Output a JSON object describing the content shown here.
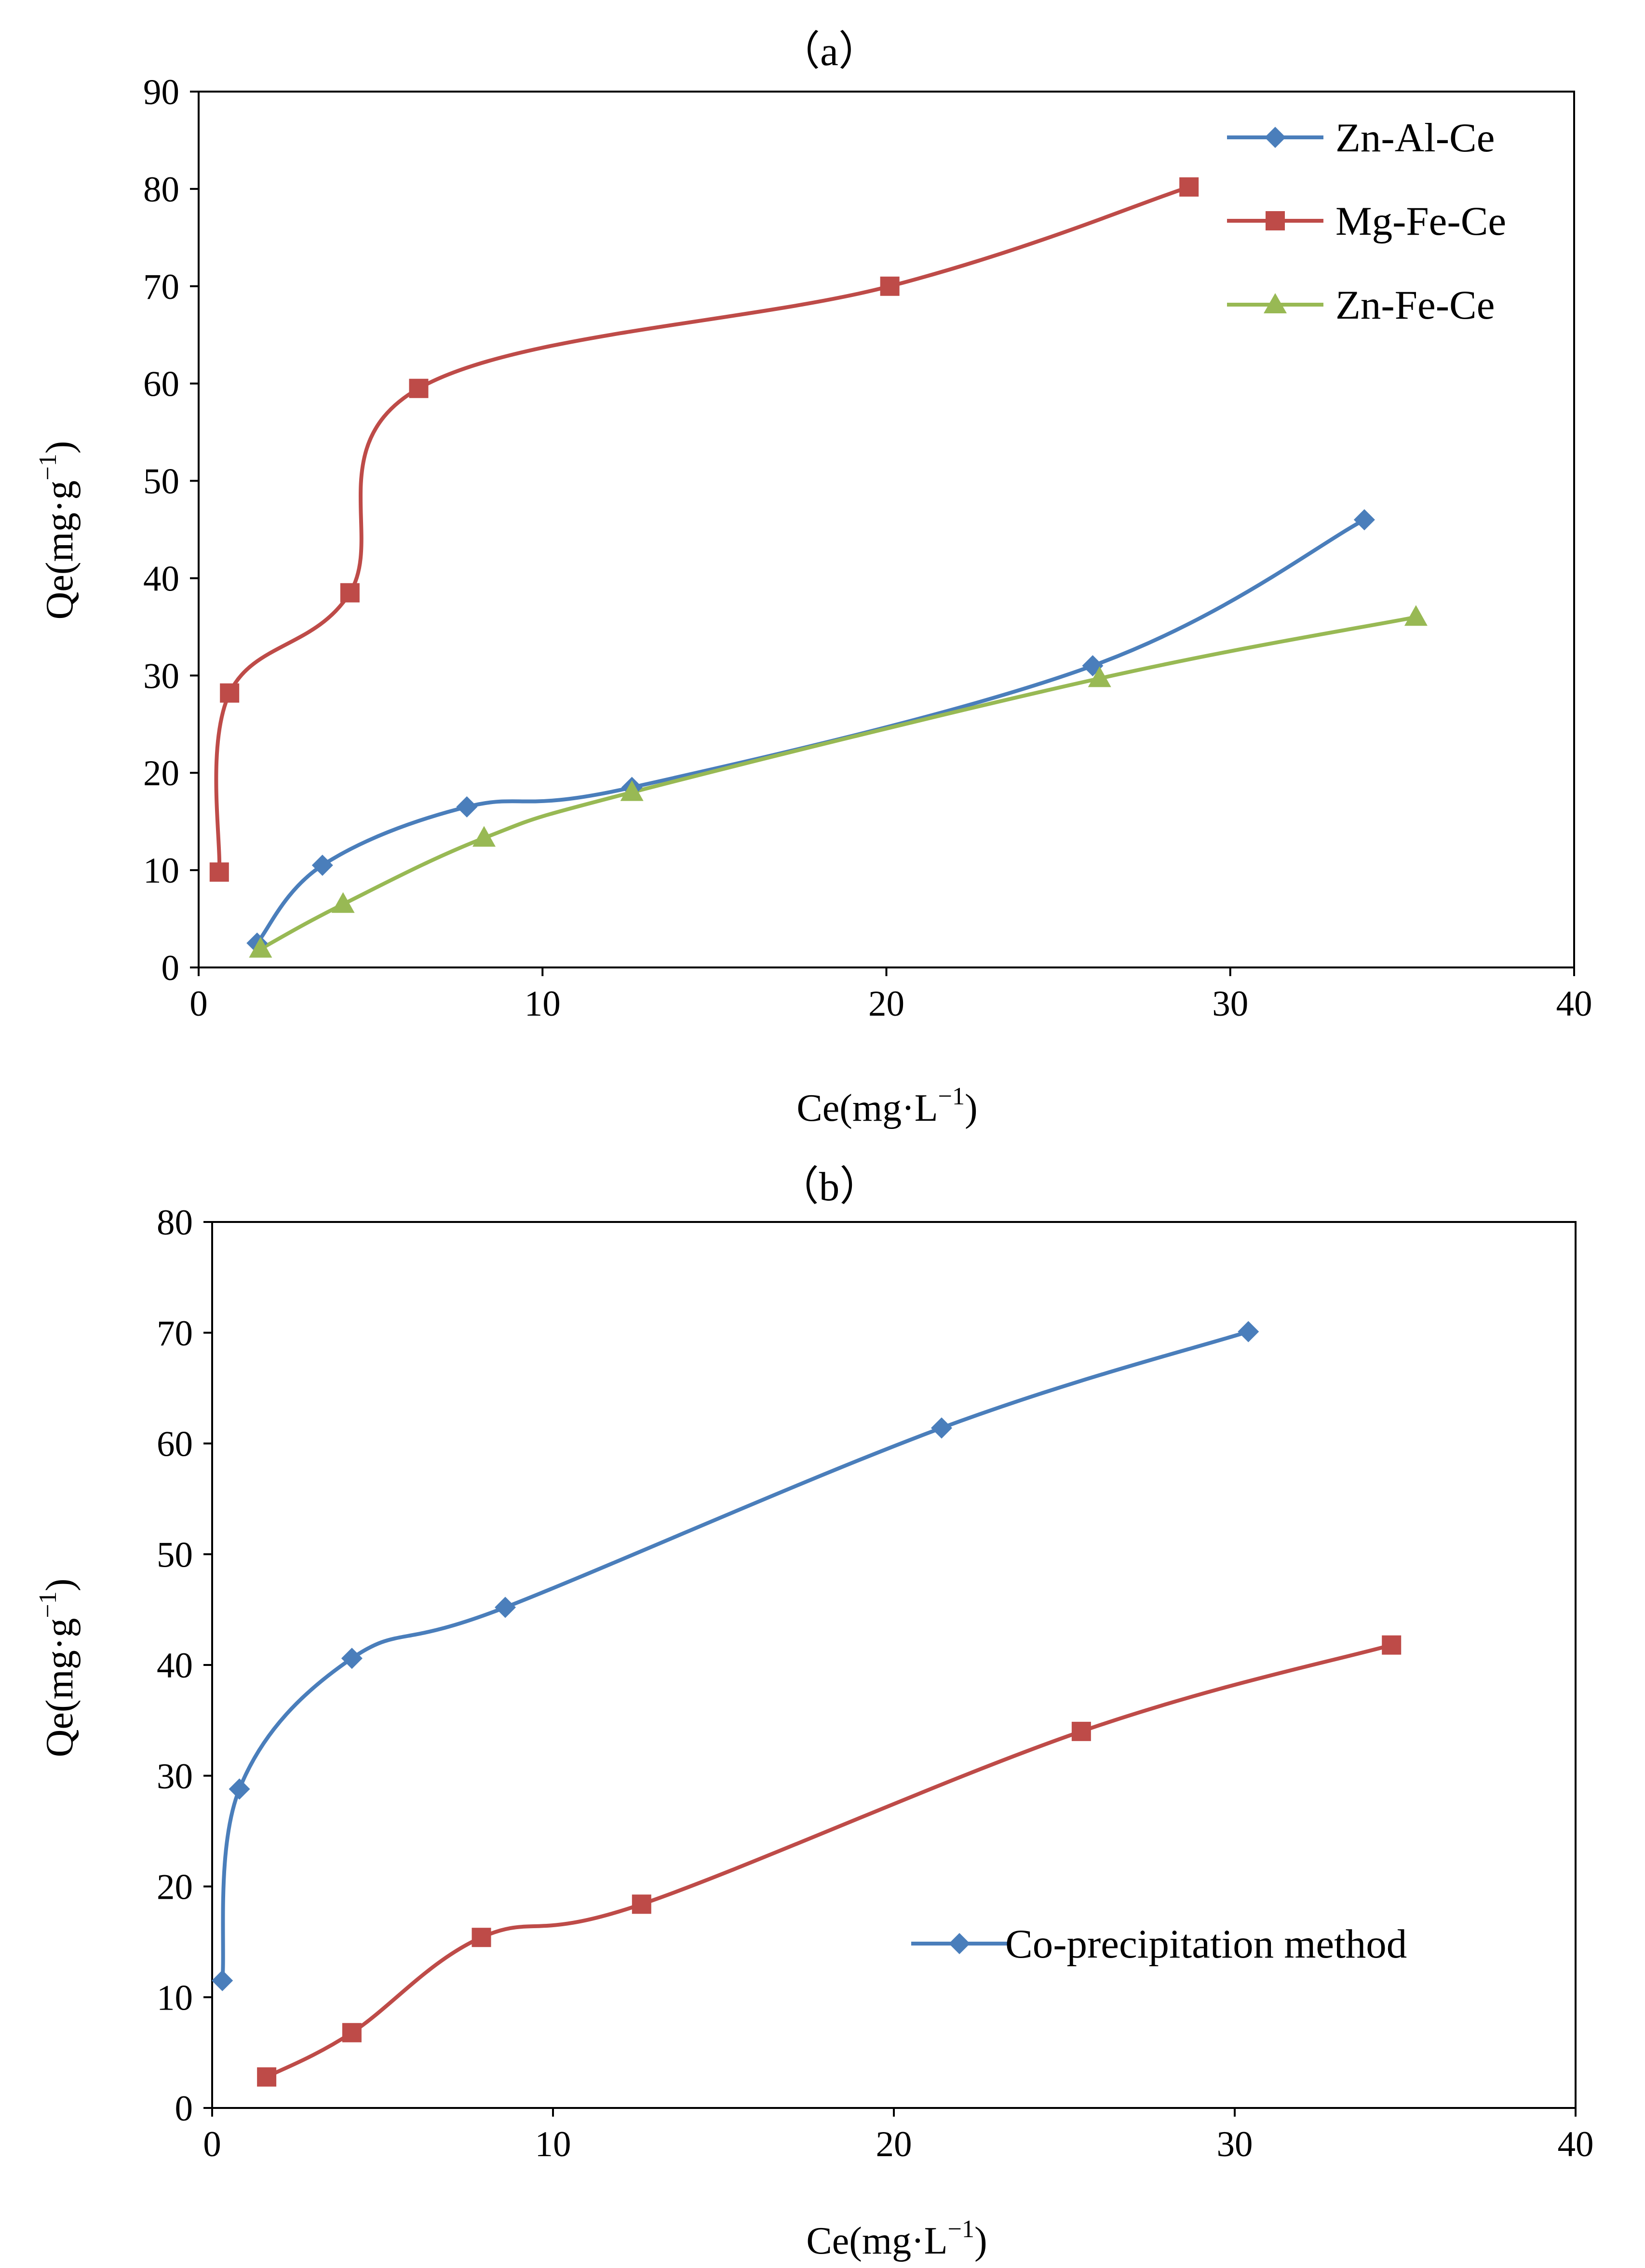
{
  "chart_data": [
    {
      "type": "line",
      "title": "（a）",
      "xlabel": "Ce(mg·L",
      "xlabel_sup": "−1",
      "xlabel_close": ")",
      "ylabel": "Qe(mg·g",
      "ylabel_sup": "−1",
      "ylabel_close": ")",
      "xlim": [
        0,
        40
      ],
      "ylim": [
        0,
        90
      ],
      "xticks": [
        "0",
        "10",
        "20",
        "30",
        "40"
      ],
      "yticks": [
        "0",
        "10",
        "20",
        "30",
        "40",
        "50",
        "60",
        "70",
        "80",
        "90"
      ],
      "grid": false,
      "legend_position": "top-right",
      "series": [
        {
          "name": "Zn-Al-Ce",
          "color": "#4a7ebb",
          "marker": "diamond",
          "x": [
            1.7,
            3.6,
            7.8,
            12.6,
            26.0,
            33.9
          ],
          "y": [
            2.5,
            10.5,
            16.5,
            18.5,
            31.0,
            46.0
          ]
        },
        {
          "name": "Mg-Fe-Ce",
          "color": "#be4b48",
          "marker": "square",
          "x": [
            0.6,
            0.9,
            4.4,
            6.4,
            20.1,
            28.8
          ],
          "y": [
            9.8,
            28.2,
            38.5,
            59.5,
            70.0,
            80.2
          ]
        },
        {
          "name": "Zn-Fe-Ce",
          "color": "#98b954",
          "marker": "triangle",
          "x": [
            1.8,
            4.2,
            8.3,
            12.6,
            26.2,
            35.4
          ],
          "y": [
            1.9,
            6.5,
            13.3,
            18.0,
            29.7,
            36.0
          ]
        }
      ]
    },
    {
      "type": "line",
      "title": "（b）",
      "xlabel": "Ce(mg·L",
      "xlabel_sup": "−1",
      "xlabel_close": ")",
      "ylabel": "Qe(mg·g",
      "ylabel_sup": "−1",
      "ylabel_close": ")",
      "xlim": [
        0,
        40
      ],
      "ylim": [
        0,
        80
      ],
      "xticks": [
        "0",
        "10",
        "20",
        "30",
        "40"
      ],
      "yticks": [
        "0",
        "10",
        "20",
        "30",
        "40",
        "50",
        "60",
        "70",
        "80"
      ],
      "grid": false,
      "legend_position": "bottom-right",
      "series": [
        {
          "name": "Co-precipitation method",
          "color": "#4a7ebb",
          "marker": "diamond",
          "x": [
            0.3,
            0.8,
            4.1,
            8.6,
            21.4,
            30.4
          ],
          "y": [
            11.5,
            28.8,
            40.6,
            45.2,
            61.4,
            70.1
          ]
        },
        {
          "color": "#be4b48",
          "marker": "square",
          "x": [
            1.6,
            4.1,
            7.9,
            12.6,
            25.5,
            34.6
          ],
          "y": [
            2.8,
            6.8,
            15.4,
            18.4,
            34.0,
            41.8
          ]
        }
      ]
    }
  ]
}
